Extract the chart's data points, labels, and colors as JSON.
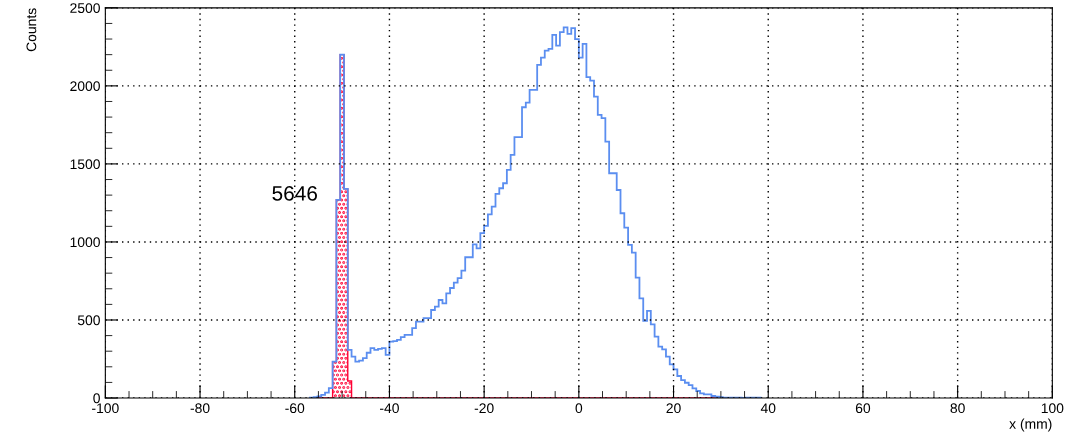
{
  "chart_data": {
    "type": "histogram",
    "xlabel": "x (mm)",
    "ylabel": "Counts",
    "annotations": [
      "5646"
    ],
    "xlim": [
      -100,
      100
    ],
    "xticks": [
      -100,
      -80,
      -60,
      -40,
      -20,
      0,
      20,
      40,
      60,
      80,
      100
    ],
    "ylim": [
      0,
      2500
    ],
    "yticks": [
      0,
      500,
      1000,
      1500,
      2000,
      2500
    ],
    "grid": true,
    "legend": false,
    "line_style": "solid",
    "bins": [
      -56.8,
      -56.0,
      -55.2,
      -54.4,
      -53.6,
      -52.8,
      -52.0,
      -51.2,
      -50.4,
      -49.6,
      -48.8,
      -48.0,
      -47.2,
      -46.4,
      -45.6,
      -44.8,
      -44.0,
      -43.2,
      -42.4,
      -41.6,
      -40.8,
      -40.0,
      -39.2,
      -38.4,
      -37.6,
      -36.8,
      -36.0,
      -35.2,
      -34.4,
      -33.6,
      -32.8,
      -32.0,
      -31.2,
      -30.4,
      -29.6,
      -28.8,
      -28.0,
      -27.2,
      -26.4,
      -25.6,
      -24.8,
      -24.0,
      -23.2,
      -22.4,
      -21.6,
      -20.8,
      -20.0,
      -19.2,
      -18.4,
      -17.6,
      -16.8,
      -16.0,
      -15.2,
      -14.4,
      -13.6,
      -12.8,
      -12.0,
      -11.2,
      -10.4,
      -9.6,
      -8.8,
      -8.0,
      -7.2,
      -6.4,
      -5.6,
      -4.8,
      -4.0,
      -3.2,
      -2.4,
      -1.6,
      -0.8,
      0.0,
      0.8,
      1.6,
      2.4,
      3.2,
      4.0,
      4.8,
      5.6,
      6.4,
      7.2,
      8.0,
      8.8,
      9.6,
      10.4,
      11.2,
      12.0,
      12.8,
      13.6,
      14.4,
      15.2,
      16.0,
      16.8,
      17.6,
      18.4,
      19.2,
      20.0,
      20.8,
      21.6,
      22.4,
      23.2,
      24.0,
      24.8,
      25.6,
      26.4,
      27.2,
      28.0,
      28.8,
      29.6,
      30.4,
      31.2,
      32.0,
      32.8,
      33.6,
      34.4,
      35.2,
      36.0,
      36.8,
      37.6,
      38.4
    ],
    "series": [
      {
        "color": "#ff0033",
        "values": [
          0,
          0,
          0,
          0,
          0,
          0,
          233,
          1270,
          2200,
          1340,
          109,
          0,
          0,
          0,
          0,
          0,
          0,
          0,
          0,
          0,
          0,
          0,
          0,
          0,
          0,
          0,
          0,
          0,
          0,
          0,
          0,
          0,
          0,
          0,
          0,
          0,
          0,
          0,
          0,
          0,
          0,
          0,
          0,
          0,
          0,
          0,
          0,
          0,
          0,
          0,
          0,
          0,
          0,
          0,
          0,
          0,
          0,
          0,
          0,
          0,
          0,
          0,
          0,
          0,
          0,
          0,
          0,
          0,
          0,
          0,
          0,
          0,
          0,
          0,
          0,
          0,
          0,
          0,
          0,
          0,
          0,
          0,
          0,
          0,
          0,
          0,
          0,
          0,
          0,
          0,
          0,
          0,
          0,
          0,
          0,
          0,
          0,
          0,
          0,
          0,
          0,
          0,
          0,
          0,
          0,
          0,
          0,
          0,
          0,
          0,
          0,
          0,
          0,
          0,
          0,
          0,
          0,
          0,
          0
        ]
      },
      {
        "color": "#5b8ef0",
        "values": [
          3,
          5,
          10,
          20,
          35,
          64,
          233,
          1270,
          2200,
          1340,
          308,
          265,
          233,
          240,
          256,
          290,
          320,
          308,
          315,
          320,
          276,
          361,
          365,
          372,
          390,
          404,
          404,
          448,
          489,
          489,
          512,
          512,
          564,
          585,
          628,
          607,
          671,
          705,
          739,
          768,
          816,
          902,
          902,
          985,
          959,
          1057,
          1103,
          1177,
          1226,
          1308,
          1344,
          1376,
          1462,
          1558,
          1671,
          1671,
          1863,
          1893,
          1974,
          1974,
          2135,
          2181,
          2226,
          2237,
          2327,
          2258,
          2344,
          2375,
          2333,
          2370,
          2300,
          2181,
          2269,
          2056,
          2034,
          1931,
          1814,
          1793,
          1643,
          1440,
          1440,
          1333,
          1184,
          1092,
          981,
          931,
          771,
          639,
          494,
          558,
          472,
          393,
          329,
          312,
          265,
          216,
          184,
          141,
          115,
          98,
          83,
          62,
          45,
          30,
          24,
          24,
          13,
          8,
          5,
          3,
          3,
          2,
          2,
          2,
          0,
          2,
          2,
          2,
          2
        ]
      }
    ]
  }
}
